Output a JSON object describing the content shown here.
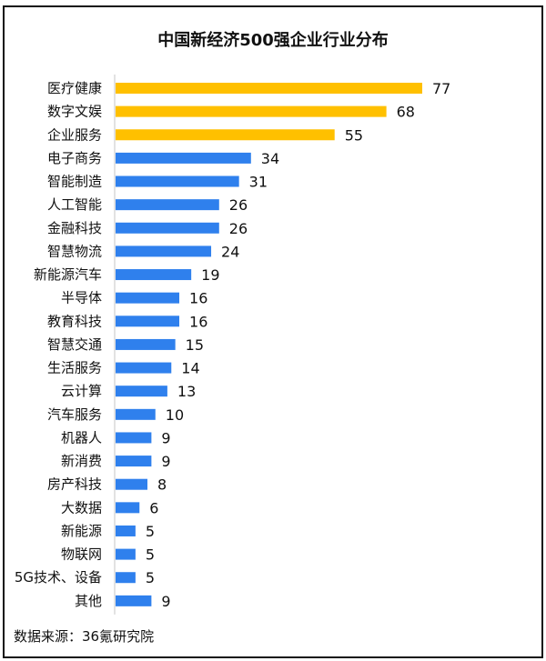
{
  "chart_data": {
    "type": "bar",
    "orientation": "horizontal",
    "title": "中国新经济500强企业行业分布",
    "categories": [
      "医疗健康",
      "数字文娱",
      "企业服务",
      "电子商务",
      "智能制造",
      "人工智能",
      "金融科技",
      "智慧物流",
      "新能源汽车",
      "半导体",
      "教育科技",
      "智慧交通",
      "生活服务",
      "云计算",
      "汽车服务",
      "机器人",
      "新消费",
      "房产科技",
      "大数据",
      "新能源",
      "物联网",
      "5G技术、设备",
      "其他"
    ],
    "values": [
      77,
      68,
      55,
      34,
      31,
      26,
      26,
      24,
      19,
      16,
      16,
      15,
      14,
      13,
      10,
      9,
      9,
      8,
      6,
      5,
      5,
      5,
      9
    ],
    "highlight_count": 3,
    "colors": {
      "highlight": "#FFC000",
      "default": "#2F80ED",
      "axis": "#D9D9D9"
    },
    "xlim": [
      0,
      80
    ],
    "data_labels": true,
    "grid": false
  },
  "source": "数据来源：36氪研究院"
}
